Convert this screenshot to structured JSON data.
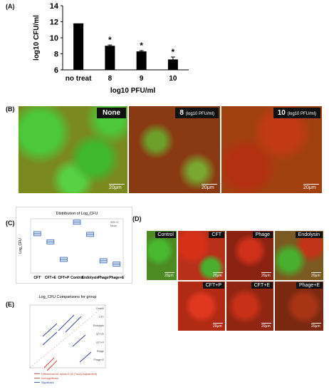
{
  "panels": {
    "a": "(A)",
    "b": "(B)",
    "c": "(C)",
    "d": "(D)",
    "e": "(E)"
  },
  "chart_data": [
    {
      "type": "bar",
      "categories": [
        "no treat",
        "8",
        "9",
        "10"
      ],
      "values": [
        11.8,
        9.0,
        8.3,
        7.3
      ],
      "errors": [
        0.05,
        0.1,
        0.1,
        0.3
      ],
      "significance": [
        "",
        "*",
        "*",
        "*"
      ],
      "ylim": [
        6,
        14
      ],
      "yticks": [
        6,
        8,
        10,
        12,
        14
      ],
      "ylabel": "log10 CFU/ml",
      "xlabel": "log10 PFU/ml",
      "color": "#000000"
    },
    {
      "type": "scatter",
      "title": "Distribution of Log_CFU",
      "ylabel": "Log_CFU",
      "categories": [
        "CFT",
        "CFT+E",
        "CFT+P",
        "Control",
        "Endolysin",
        "Phage",
        "Phage+E"
      ],
      "values": [
        8.8,
        7.6,
        5.0,
        10.5,
        8.7,
        4.8,
        4.3
      ],
      "ylim": [
        3,
        11
      ],
      "legend": [
        "95% CI",
        "Mean"
      ]
    },
    {
      "type": "line",
      "title": "Log_CFU Comparisons for group",
      "legend": [
        {
          "label": "Differences for alpha=0.05 (Tukey Adjustment)",
          "color": "#c0392b"
        },
        {
          "label": "Not significant",
          "color": "#c0392b"
        },
        {
          "label": "Significant",
          "color": "#2c3e90"
        }
      ],
      "axis_labels": [
        "Control",
        "CFT",
        "Endolysin",
        "CFT+E",
        "CFT+P",
        "Phage",
        "Phage+E"
      ]
    }
  ],
  "micro_b": {
    "labels": [
      "None",
      "8",
      "10"
    ],
    "unit": "(log10 PFU/ml)",
    "scale": "20μm"
  },
  "micro_d": {
    "labels": [
      "Control",
      "CFT",
      "Phage",
      "Endolysin",
      "CFT+P",
      "CFT+E",
      "Phage+E"
    ],
    "scale": "20μm"
  }
}
